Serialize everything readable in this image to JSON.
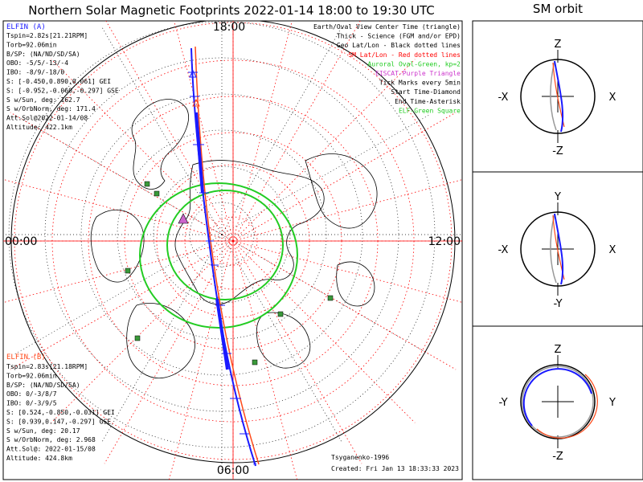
{
  "title": "Northern Solar Magnetic Footprints 2022-01-14 18:00 to 19:30 UTC",
  "orbit_title": "SM orbit",
  "clock_labels": {
    "top": "18:00",
    "left": "00:00",
    "right": "12:00",
    "bottom": "06:00"
  },
  "elfin_a": {
    "name": "ELFIN (A)",
    "color": "#1a1aff",
    "lines": [
      "Tspin=2.82s[21.21RPM]",
      "Torb=92.06min",
      "B/SP: (NA/ND/SD/SA)",
      "OBO: -5/5/-13/-4",
      "IBO: -8/9/-18/0",
      "S: [-0.450,0.890,0.061] GEI",
      "S: [-0.952,-0.060,-0.297] GSE",
      "S w/Sun, deg: 162.7",
      "S w/OrbNorm, deg: 171.4",
      "Att.Sol@2022-01-14/08",
      "Altitude: 422.1km"
    ]
  },
  "elfin_b": {
    "name": "ELFIN (B)",
    "color": "#ff4a1a",
    "lines": [
      "Tspin=2.83s[21.18RPM]",
      "Torb=92.06min",
      "B/SP: (NA/ND/SD/SA)",
      "OBO: 0/-3/8/7",
      "IBO: 0/-3/9/5",
      "S: [0.524,-0.850,-0.031] GEI",
      "S: [0.939,0.147,-0.297] GSE",
      "S w/Sun, deg: 20.17",
      "S w/OrbNorm, deg: 2.968",
      "Att.Sol@: 2022-01-15/08",
      "Altitude: 424.8km"
    ]
  },
  "legend": [
    {
      "text": "Earth/Oval View Center Time (triangle)",
      "color": "#000000"
    },
    {
      "text": "Thick - Science (FGM and/or EPD)",
      "color": "#000000"
    },
    {
      "text": "Geo Lat/Lon - Black dotted lines",
      "color": "#000000"
    },
    {
      "text": "SM Lat/Lon - Red dotted lines",
      "color": "#ff0000"
    },
    {
      "text": "Auroral Oval-Green, kp=2",
      "color": "#22cc22"
    },
    {
      "text": "EISCAT-Purple Triangle",
      "color": "#cc33cc"
    },
    {
      "text": "Tick Marks every 5min",
      "color": "#000000"
    },
    {
      "text": "Start Time-Diamond",
      "color": "#000000"
    },
    {
      "text": "End Time-Asterisk",
      "color": "#000000"
    },
    {
      "text": "ELF-Green Square",
      "color": "#22cc22"
    }
  ],
  "footer": {
    "model": "Tsyganenko-1996",
    "created": "Created: Fri Jan 13 18:33:33 2023"
  },
  "orbit_panels": [
    {
      "top": "Z",
      "bottom": "-Z",
      "left": "-X",
      "right": "X"
    },
    {
      "top": "Y",
      "bottom": "-Y",
      "left": "-X",
      "right": "X"
    },
    {
      "top": "Z",
      "bottom": "-Z",
      "left": "-Y",
      "right": "Y"
    }
  ],
  "colors": {
    "oval": "#22cc22",
    "sm_grid": "#ff0000",
    "geo_grid": "#000000",
    "track_a": "#1a1aff",
    "track_b": "#ff4a1a"
  }
}
